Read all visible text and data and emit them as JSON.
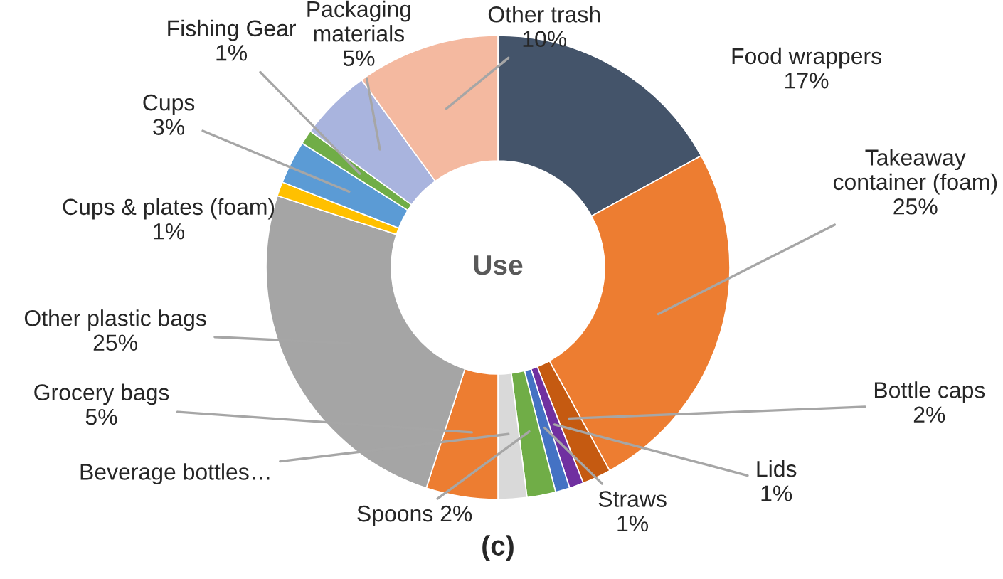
{
  "chart_data": {
    "type": "donut",
    "title": "(c)",
    "subtitle": "Use",
    "categories": [
      "Food wrappers",
      "Takeaway container (foam)",
      "Bottle caps",
      "Lids",
      "Straws",
      "Spoons 2%",
      "Beverage bottles…",
      "Grocery bags",
      "Other plastic bags",
      "Cups & plates (foam)",
      "Cups",
      "Fishing Gear",
      "Packaging materials",
      "Other trash"
    ],
    "values": [
      17,
      25,
      2,
      1,
      1,
      2,
      2,
      5,
      25,
      1,
      3,
      1,
      5,
      10
    ],
    "value_labels": [
      "17%",
      "25%",
      "2%",
      "1%",
      "1%",
      null,
      null,
      "5%",
      "25%",
      "1%",
      "3%",
      "1%",
      "5%",
      "10%"
    ],
    "colors": [
      "#44546a",
      "#ed7d31",
      "#c55a11",
      "#7030a0",
      "#4472c4",
      "#70ad47",
      "#d9d9d9",
      "#ed7d31",
      "#a5a5a5",
      "#ffc000",
      "#5b9bd5",
      "#70ad47",
      "#a9b4de",
      "#f4b9a0"
    ],
    "legend": false
  }
}
